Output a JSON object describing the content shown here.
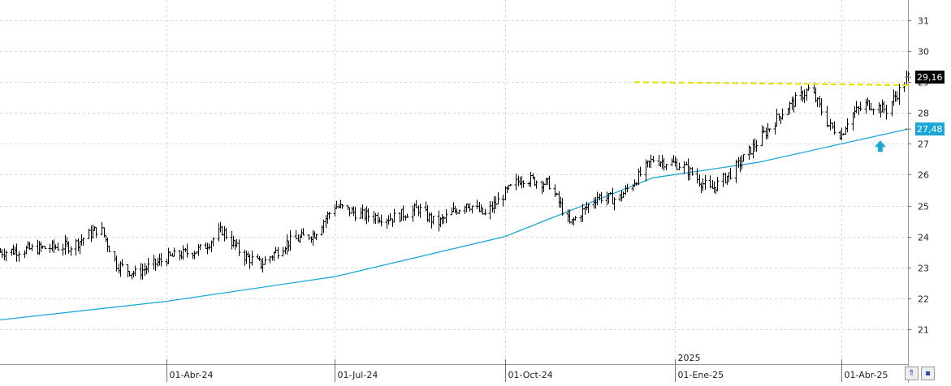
{
  "chart_data": {
    "type": "ohlc",
    "y_axis": {
      "position": "right",
      "range": [
        20,
        31.5
      ],
      "ticks": [
        21,
        22,
        23,
        24,
        25,
        26,
        27,
        28,
        29,
        30,
        31
      ],
      "grid": true
    },
    "x_axis": {
      "range": [
        "2024-01-02",
        "2025-05-07"
      ],
      "ticks": [
        {
          "date": "2024-04-01",
          "label": "01-Abr-24"
        },
        {
          "date": "2024-07-01",
          "label": "01-Jul-24"
        },
        {
          "date": "2024-10-01",
          "label": "01-Oct-24"
        },
        {
          "date": "2025-01-01",
          "label": "01-Ene-25"
        },
        {
          "date": "2025-04-01",
          "label": "01-Abr-25"
        }
      ],
      "year_marker": {
        "date": "2025-01-01",
        "label": "2025"
      },
      "grid": true
    },
    "price_series": {
      "color": "#000000",
      "close_anchors": [
        [
          "2024-01-02",
          23.5
        ],
        [
          "2024-01-20",
          23.6
        ],
        [
          "2024-02-10",
          23.7
        ],
        [
          "2024-02-25",
          24.3
        ],
        [
          "2024-03-05",
          23.1
        ],
        [
          "2024-03-15",
          22.8
        ],
        [
          "2024-04-01",
          23.3
        ],
        [
          "2024-04-20",
          23.6
        ],
        [
          "2024-05-01",
          24.2
        ],
        [
          "2024-05-12",
          23.4
        ],
        [
          "2024-05-22",
          23.1
        ],
        [
          "2024-06-05",
          23.8
        ],
        [
          "2024-06-20",
          24.1
        ],
        [
          "2024-07-01",
          25.0
        ],
        [
          "2024-07-15",
          24.7
        ],
        [
          "2024-08-01",
          24.6
        ],
        [
          "2024-08-15",
          24.9
        ],
        [
          "2024-08-25",
          24.4
        ],
        [
          "2024-09-10",
          25.1
        ],
        [
          "2024-09-20",
          24.7
        ],
        [
          "2024-10-01",
          25.4
        ],
        [
          "2024-10-10",
          25.9
        ],
        [
          "2024-10-25",
          25.7
        ],
        [
          "2024-11-05",
          24.4
        ],
        [
          "2024-11-20",
          25.3
        ],
        [
          "2024-12-01",
          25.2
        ],
        [
          "2024-12-10",
          25.8
        ],
        [
          "2024-12-20",
          26.5
        ],
        [
          "2025-01-05",
          26.3
        ],
        [
          "2025-01-20",
          25.5
        ],
        [
          "2025-02-01",
          26.1
        ],
        [
          "2025-02-15",
          27.1
        ],
        [
          "2025-03-01",
          28.1
        ],
        [
          "2025-03-15",
          28.8
        ],
        [
          "2025-03-25",
          27.6
        ],
        [
          "2025-04-01",
          27.3
        ],
        [
          "2025-04-05",
          27.9
        ],
        [
          "2025-04-15",
          28.3
        ],
        [
          "2025-04-25",
          28.1
        ],
        [
          "2025-05-07",
          29.16
        ]
      ]
    },
    "moving_average": {
      "color": "#1aa7d8",
      "points": [
        [
          "2024-01-02",
          21.3
        ],
        [
          "2024-04-01",
          21.9
        ],
        [
          "2024-07-01",
          22.7
        ],
        [
          "2024-10-01",
          24.0
        ],
        [
          "2024-12-20",
          25.9
        ],
        [
          "2025-02-15",
          26.4
        ],
        [
          "2025-04-01",
          27.0
        ],
        [
          "2025-05-07",
          27.48
        ]
      ]
    },
    "resistance_line": {
      "color": "#e4e400",
      "style": "dashed",
      "from": [
        "2024-12-10",
        29.0
      ],
      "to": [
        "2025-05-07",
        28.9
      ]
    },
    "labels": {
      "last_price": {
        "value": 29.16,
        "text": "29,16",
        "background": "#000000",
        "color": "#ffffff"
      },
      "ma_value": {
        "value": 27.48,
        "text": "27,48",
        "background": "#1aa7d8",
        "color": "#ffffff"
      }
    },
    "arrow_marker": {
      "date": "2025-04-22",
      "value": 26.9,
      "direction": "up",
      "color": "#1aa7d8"
    }
  },
  "nav": {
    "scroll_icon": "double-chevron-up-icon",
    "save_icon": "floppy-disk-icon",
    "scroll_label": "⇑",
    "save_label": "▪"
  }
}
